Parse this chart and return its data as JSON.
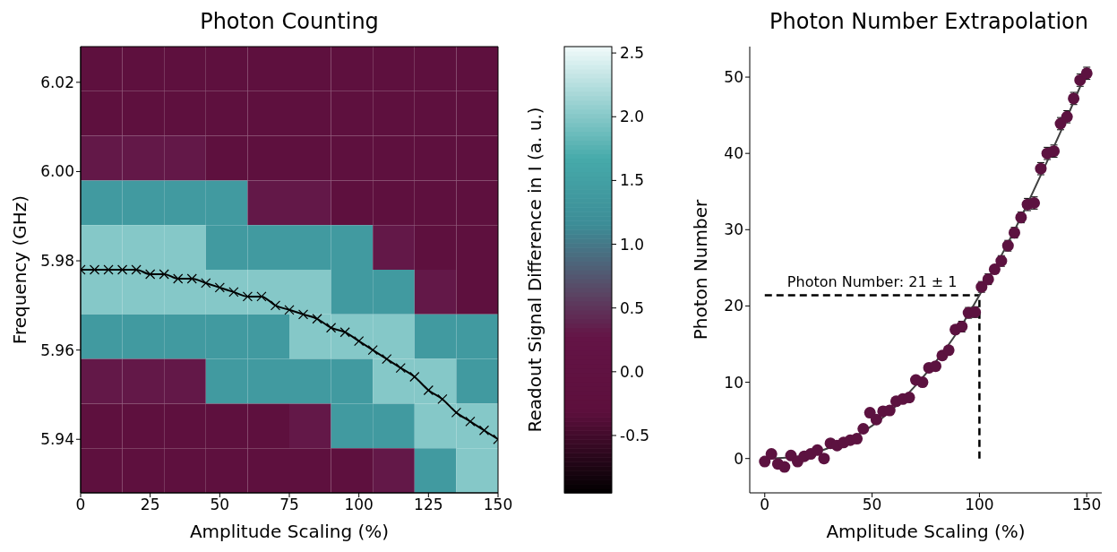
{
  "chart_data": [
    {
      "type": "heatmap",
      "title": "Photon Counting",
      "xlabel": "Amplitude Scaling (%)",
      "ylabel": "Frequency (GHz)",
      "clabel": "Readout Signal Difference in I (a. u.)",
      "cells": [
        [
          -0.2,
          -0.2,
          -0.2,
          -0.2,
          -0.2,
          -0.2,
          -0.2,
          -0.2,
          -0.2,
          -0.2
        ],
        [
          -0.2,
          -0.2,
          -0.2,
          -0.2,
          -0.2,
          -0.2,
          -0.2,
          -0.2,
          -0.2,
          -0.2
        ],
        [
          0.3,
          0.3,
          0.3,
          -0.2,
          -0.2,
          -0.2,
          -0.2,
          -0.2,
          -0.2,
          -0.2
        ],
        [
          1.4,
          1.4,
          1.4,
          1.4,
          0.3,
          0.3,
          -0.2,
          -0.2,
          -0.2,
          -0.2
        ],
        [
          2.0,
          2.0,
          2.0,
          1.4,
          1.4,
          1.4,
          1.4,
          0.3,
          -0.2,
          -0.2
        ],
        [
          2.0,
          2.0,
          2.0,
          2.0,
          2.0,
          2.0,
          1.4,
          1.4,
          0.3,
          -0.2
        ],
        [
          1.4,
          1.4,
          1.4,
          1.4,
          1.4,
          2.0,
          2.0,
          2.0,
          1.4,
          1.4
        ],
        [
          0.3,
          0.3,
          0.3,
          1.4,
          1.4,
          1.4,
          1.4,
          2.0,
          2.0,
          1.4
        ],
        [
          -0.2,
          -0.2,
          -0.2,
          -0.2,
          -0.2,
          0.3,
          1.4,
          1.4,
          2.0,
          2.0
        ],
        [
          -0.2,
          -0.2,
          -0.2,
          -0.2,
          -0.2,
          -0.2,
          -0.2,
          0.3,
          1.4,
          2.0
        ]
      ],
      "clim": [
        -0.95,
        2.55
      ],
      "cticks": [
        -0.5,
        {
          "value": 0,
          "label": "0.0"
        },
        0.5,
        {
          "value": 1,
          "label": "1.0"
        },
        1.5,
        {
          "value": 2,
          "label": "2.0"
        },
        2.5
      ],
      "xlim": [
        0,
        150
      ],
      "xticks": [
        0,
        25,
        50,
        75,
        100,
        125,
        150
      ],
      "ylim": [
        5.928,
        6.028
      ],
      "yticks": [
        5.94,
        5.96,
        5.98,
        {
          "value": 6.0,
          "label": "6.00"
        },
        6.02
      ],
      "marker": "cross",
      "series": [
        {
          "type": "line",
          "color": "#000000",
          "x": [
            0,
            5,
            10,
            15,
            20,
            25,
            30,
            35,
            40,
            45,
            50,
            55,
            60,
            65,
            70,
            75,
            80,
            85,
            90,
            95,
            100,
            105,
            110,
            115,
            120,
            125,
            130,
            135,
            140,
            145,
            150
          ],
          "values": [
            5.978,
            5.978,
            5.978,
            5.978,
            5.978,
            5.977,
            5.977,
            5.976,
            5.976,
            5.975,
            5.974,
            5.973,
            5.972,
            5.972,
            5.97,
            5.969,
            5.968,
            5.967,
            5.965,
            5.964,
            5.962,
            5.96,
            5.958,
            5.956,
            5.954,
            5.951,
            5.949,
            5.946,
            5.944,
            5.942,
            5.94
          ]
        }
      ]
    },
    {
      "type": "scatter",
      "title": "Photon Number Extrapolation",
      "xlabel": "Amplitude Scaling (%)",
      "ylabel": "Photon Number",
      "xlim": [
        -7,
        157
      ],
      "xticks": [
        0,
        50,
        100,
        150
      ],
      "ylim": [
        -4.5,
        54
      ],
      "yticks": [
        0,
        10,
        20,
        30,
        40,
        50
      ],
      "marker": "circle",
      "series": [
        {
          "type": "scatter",
          "color": "#5c1240",
          "x": [
            0,
            3.1,
            6.1,
            9.2,
            12.2,
            15.3,
            18.4,
            21.4,
            24.5,
            27.6,
            30.6,
            33.7,
            36.7,
            39.8,
            42.9,
            45.9,
            49.0,
            52.0,
            55.1,
            58.2,
            61.2,
            64.3,
            67.3,
            70.4,
            73.5,
            76.5,
            79.6,
            82.7,
            85.7,
            88.8,
            91.8,
            94.9,
            98.0,
            101.0,
            104.1,
            107.1,
            110.2,
            113.3,
            116.3,
            119.4,
            122.4,
            125.5,
            128.6,
            131.6,
            134.7,
            137.8,
            140.8,
            143.9,
            146.9,
            150
          ],
          "values": [
            -0.4,
            0.6,
            -0.7,
            -1.1,
            0.4,
            -0.4,
            0.3,
            0.6,
            1.1,
            0.0,
            2.0,
            1.7,
            2.1,
            2.4,
            2.6,
            3.9,
            6.0,
            5.1,
            6.2,
            6.3,
            7.5,
            7.8,
            8.0,
            10.3,
            10.0,
            11.9,
            12.1,
            13.5,
            14.2,
            16.9,
            17.3,
            19.1,
            19.2,
            22.5,
            23.5,
            24.8,
            25.9,
            27.9,
            29.6,
            31.6,
            33.3,
            33.5,
            38.0,
            40.0,
            40.3,
            43.9,
            44.8,
            47.2,
            49.6,
            50.5
          ],
          "errors": [
            null,
            null,
            null,
            null,
            null,
            null,
            null,
            null,
            null,
            null,
            null,
            null,
            null,
            null,
            null,
            null,
            null,
            null,
            null,
            null,
            null,
            null,
            null,
            null,
            null,
            null,
            null,
            null,
            null,
            null,
            0.7,
            0.7,
            0.7,
            0.7,
            0.7,
            null,
            0.7,
            0.7,
            0.7,
            0.7,
            0.8,
            0.8,
            0.8,
            0.8,
            0.8,
            0.8,
            0.8,
            0.8,
            0.8,
            0.8
          ]
        },
        {
          "type": "line",
          "color": "#404040",
          "marker": "none",
          "x": [
            0,
            10,
            20,
            30,
            40,
            50,
            60,
            70,
            80,
            90,
            100,
            110,
            120,
            130,
            140,
            150
          ],
          "values": [
            0,
            0.1,
            0.5,
            1.4,
            2.6,
            4.3,
            6.6,
            9.5,
            12.8,
            16.7,
            21.4,
            26.5,
            32.0,
            38.0,
            44.2,
            50.8
          ]
        }
      ],
      "ref_lines": [
        {
          "axis": "y",
          "value": 21.4,
          "label": "Photon Number: 21 ± 1",
          "color": "#000000",
          "line_style": "dashed"
        },
        {
          "axis": "x",
          "value": 100,
          "color": "#000000",
          "line_style": "dashed"
        }
      ]
    }
  ]
}
